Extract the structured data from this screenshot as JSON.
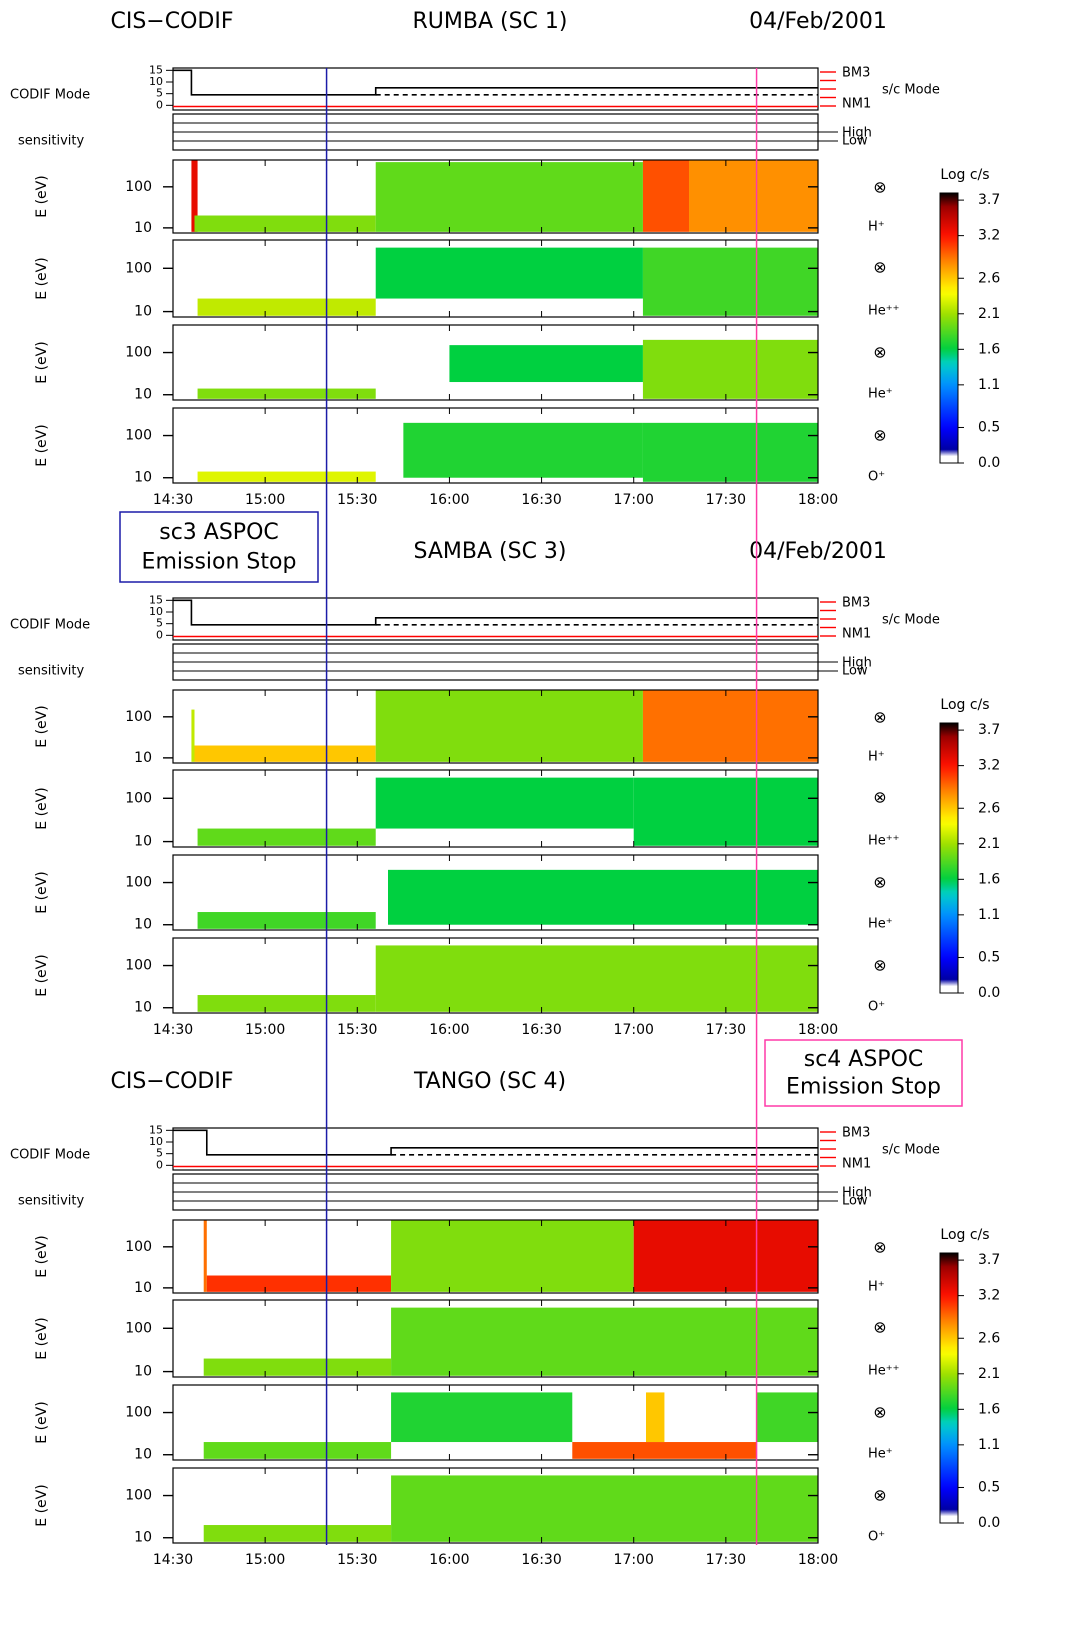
{
  "chart_data": [
    {
      "type": "spectrogram",
      "instrument": "CIS−CODIF",
      "spacecraft": "RUMBA (SC 1)",
      "date": "04/Feb/2001",
      "xlim": [
        870,
        1080
      ],
      "xticks": [
        {
          "value": 870,
          "label": "14:30"
        },
        {
          "value": 900,
          "label": "15:00"
        },
        {
          "value": 930,
          "label": "15:30"
        },
        {
          "value": 960,
          "label": "16:00"
        },
        {
          "value": 990,
          "label": "16:30"
        },
        {
          "value": 1020,
          "label": "17:00"
        },
        {
          "value": 1050,
          "label": "17:30"
        },
        {
          "value": 1080,
          "label": "18:00"
        }
      ],
      "mode_label": "CODIF Mode",
      "mode_ylim": [
        -2,
        16
      ],
      "mode_yticks": [
        15,
        10,
        5,
        0
      ],
      "mode_lines": [
        {
          "color": "#000000",
          "style": "solid",
          "x": [
            870,
            876,
            876,
            936,
            936,
            1080
          ],
          "values": [
            15,
            15,
            4.5,
            4.5,
            7.5,
            7.5
          ]
        },
        {
          "color": "#000000",
          "style": "dashed",
          "x": [
            936,
            1080
          ],
          "values": [
            4.5,
            4.5
          ]
        },
        {
          "color": "#ff0000",
          "style": "solid",
          "x": [
            870,
            1080
          ],
          "values": [
            -0.5,
            -0.5
          ]
        }
      ],
      "sc_mode_labels": [
        "BM3",
        "NM1"
      ],
      "sc_mode_title": "s/c Mode",
      "sensitivity_label": "sensitivity",
      "sensitivity_levels": [
        "High",
        "Low"
      ],
      "ylabel": "E (eV)",
      "log_y": true,
      "ylim": [
        7.5,
        450
      ],
      "yticks": [
        10,
        100
      ],
      "colorbar_label": "Log c/s",
      "clim": [
        0,
        3.8
      ],
      "colorbar_ticks": [
        3.7,
        3.2,
        2.6,
        2.1,
        1.6,
        1.1,
        0.5,
        {
          "value": 0,
          "label": "0.0"
        }
      ],
      "panels": [
        {
          "species": "H⁺",
          "symbol": "⊗",
          "cells": [
            [
              876,
              878,
              8,
              450,
              3.3
            ],
            [
              877,
              936,
              8,
              20,
              2.0
            ],
            [
              936,
              1023,
              8,
              400,
              1.9
            ],
            [
              1023,
              1038,
              8,
              450,
              3.0
            ],
            [
              1038,
              1080,
              8,
              450,
              2.8
            ]
          ]
        },
        {
          "species": "He⁺⁺",
          "symbol": "⊗",
          "cells": [
            [
              878,
              936,
              8,
              20,
              2.2
            ],
            [
              936,
              1023,
              20,
              300,
              1.6
            ],
            [
              1023,
              1080,
              8,
              300,
              1.8
            ]
          ]
        },
        {
          "species": "He⁺",
          "symbol": "⊗",
          "cells": [
            [
              878,
              936,
              8,
              14,
              2.0
            ],
            [
              960,
              1023,
              20,
              150,
              1.6
            ],
            [
              1023,
              1080,
              8,
              200,
              2.0
            ]
          ]
        },
        {
          "species": "O⁺",
          "symbol": "⊗",
          "cells": [
            [
              878,
              936,
              8,
              14,
              2.3
            ],
            [
              945,
              1023,
              10,
              200,
              1.7
            ],
            [
              1023,
              1080,
              8,
              200,
              1.7
            ]
          ]
        }
      ]
    },
    {
      "type": "spectrogram",
      "spacecraft": "SAMBA (SC 3)",
      "date": "04/Feb/2001",
      "xlim": [
        870,
        1080
      ],
      "xticks": [
        {
          "value": 870,
          "label": "14:30"
        },
        {
          "value": 900,
          "label": "15:00"
        },
        {
          "value": 930,
          "label": "15:30"
        },
        {
          "value": 960,
          "label": "16:00"
        },
        {
          "value": 990,
          "label": "16:30"
        },
        {
          "value": 1020,
          "label": "17:00"
        },
        {
          "value": 1050,
          "label": "17:30"
        },
        {
          "value": 1080,
          "label": "18:00"
        }
      ],
      "mode_label": "CODIF Mode",
      "mode_ylim": [
        -2,
        16
      ],
      "mode_yticks": [
        15,
        10,
        5,
        0
      ],
      "mode_lines": [
        {
          "color": "#000000",
          "style": "solid",
          "x": [
            870,
            876,
            876,
            936,
            936,
            1080
          ],
          "values": [
            15,
            15,
            4.5,
            4.5,
            7.5,
            7.5
          ]
        },
        {
          "color": "#000000",
          "style": "dashed",
          "x": [
            936,
            1080
          ],
          "values": [
            4.5,
            4.5
          ]
        },
        {
          "color": "#ff0000",
          "style": "solid",
          "x": [
            870,
            1080
          ],
          "values": [
            -0.5,
            -0.5
          ]
        }
      ],
      "sc_mode_labels": [
        "BM3",
        "NM1"
      ],
      "sc_mode_title": "s/c Mode",
      "sensitivity_label": "sensitivity",
      "sensitivity_levels": [
        "High",
        "Low"
      ],
      "ylabel": "E (eV)",
      "log_y": true,
      "ylim": [
        7.5,
        450
      ],
      "yticks": [
        10,
        100
      ],
      "colorbar_label": "Log c/s",
      "clim": [
        0,
        3.8
      ],
      "colorbar_ticks": [
        3.7,
        3.2,
        2.6,
        2.1,
        1.6,
        1.1,
        0.5,
        {
          "value": 0,
          "label": "0.0"
        }
      ],
      "panels": [
        {
          "species": "H⁺",
          "symbol": "⊗",
          "cells": [
            [
              876,
              877,
              8,
              150,
              2.2
            ],
            [
              877,
              936,
              8,
              20,
              2.6
            ],
            [
              936,
              1023,
              8,
              450,
              2.0
            ],
            [
              1023,
              1080,
              8,
              450,
              2.9
            ]
          ]
        },
        {
          "species": "He⁺⁺",
          "symbol": "⊗",
          "cells": [
            [
              878,
              936,
              8,
              20,
              1.9
            ],
            [
              936,
              1020,
              20,
              300,
              1.6
            ],
            [
              1020,
              1080,
              8,
              300,
              1.6
            ]
          ]
        },
        {
          "species": "He⁺",
          "symbol": "⊗",
          "cells": [
            [
              878,
              936,
              8,
              20,
              1.8
            ],
            [
              940,
              1080,
              10,
              200,
              1.6
            ]
          ]
        },
        {
          "species": "O⁺",
          "symbol": "⊗",
          "cells": [
            [
              878,
              936,
              8,
              20,
              2.0
            ],
            [
              936,
              1080,
              8,
              300,
              2.0
            ]
          ]
        }
      ]
    },
    {
      "type": "spectrogram",
      "instrument": "CIS−CODIF",
      "spacecraft": "TANGO (SC 4)",
      "xlim": [
        870,
        1080
      ],
      "xticks": [
        {
          "value": 870,
          "label": "14:30"
        },
        {
          "value": 900,
          "label": "15:00"
        },
        {
          "value": 930,
          "label": "15:30"
        },
        {
          "value": 960,
          "label": "16:00"
        },
        {
          "value": 990,
          "label": "16:30"
        },
        {
          "value": 1020,
          "label": "17:00"
        },
        {
          "value": 1050,
          "label": "17:30"
        },
        {
          "value": 1080,
          "label": "18:00"
        }
      ],
      "mode_label": "CODIF Mode",
      "mode_ylim": [
        -2,
        16
      ],
      "mode_yticks": [
        15,
        10,
        5,
        0
      ],
      "mode_lines": [
        {
          "color": "#000000",
          "style": "solid",
          "x": [
            870,
            881,
            881,
            941,
            941,
            1080
          ],
          "values": [
            15,
            15,
            4.5,
            4.5,
            7.5,
            7.5
          ]
        },
        {
          "color": "#000000",
          "style": "dashed",
          "x": [
            941,
            1080
          ],
          "values": [
            4.5,
            4.5
          ]
        },
        {
          "color": "#ff0000",
          "style": "solid",
          "x": [
            870,
            1080
          ],
          "values": [
            -0.5,
            -0.5
          ]
        }
      ],
      "sc_mode_labels": [
        "BM3",
        "NM1"
      ],
      "sc_mode_title": "s/c Mode",
      "sensitivity_label": "sensitivity",
      "sensitivity_levels": [
        "High",
        "Low"
      ],
      "ylabel": "E (eV)",
      "log_y": true,
      "ylim": [
        7.5,
        450
      ],
      "yticks": [
        10,
        100
      ],
      "colorbar_label": "Log c/s",
      "clim": [
        0,
        3.8
      ],
      "colorbar_ticks": [
        3.7,
        3.2,
        2.6,
        2.1,
        1.6,
        1.1,
        0.5,
        {
          "value": 0,
          "label": "0.0"
        }
      ],
      "panels": [
        {
          "species": "H⁺",
          "symbol": "⊗",
          "cells": [
            [
              880,
              881,
              8,
              450,
              2.9
            ],
            [
              881,
              941,
              8,
              20,
              3.1
            ],
            [
              941,
              1020,
              8,
              450,
              2.0
            ],
            [
              1020,
              1080,
              8,
              450,
              3.3
            ]
          ]
        },
        {
          "species": "He⁺⁺",
          "symbol": "⊗",
          "cells": [
            [
              880,
              941,
              8,
              20,
              2.0
            ],
            [
              941,
              1080,
              8,
              300,
              1.9
            ]
          ]
        },
        {
          "species": "He⁺",
          "symbol": "⊗",
          "cells": [
            [
              880,
              941,
              8,
              20,
              1.9
            ],
            [
              941,
              1000,
              20,
              300,
              1.7
            ],
            [
              1000,
              1060,
              8,
              20,
              3.0
            ],
            [
              1024,
              1030,
              20,
              300,
              2.6
            ],
            [
              1060,
              1080,
              20,
              300,
              1.8
            ]
          ]
        },
        {
          "species": "O⁺",
          "symbol": "⊗",
          "cells": [
            [
              880,
              941,
              8,
              20,
              2.0
            ],
            [
              941,
              1080,
              8,
              300,
              1.9
            ]
          ]
        }
      ]
    }
  ],
  "annotations": [
    {
      "lines": [
        "sc3 ASPOC",
        "Emission Stop"
      ],
      "time": 920,
      "color": "#1c1ca8"
    },
    {
      "lines": [
        "sc4 ASPOC",
        "Emission Stop"
      ],
      "time": 1060,
      "color": "#ff3aa8"
    }
  ]
}
